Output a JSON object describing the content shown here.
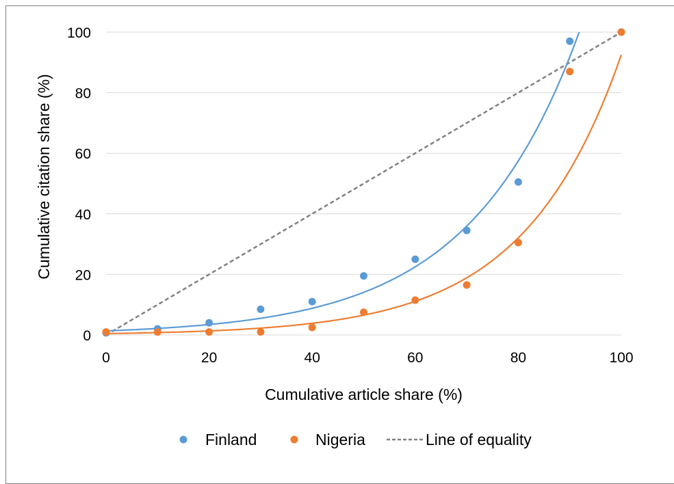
{
  "chart_data": {
    "type": "scatter",
    "title": "",
    "xlabel": "Cumulative article share (%)",
    "ylabel": "Cumulative citation share (%)",
    "xlim": [
      0,
      100
    ],
    "ylim": [
      0,
      100
    ],
    "xticks": [
      "0",
      "20",
      "40",
      "60",
      "80",
      "100"
    ],
    "yticks": [
      "0",
      "20",
      "40",
      "60",
      "80",
      "100"
    ],
    "grid": "horizontal",
    "legend_position": "bottom",
    "series": [
      {
        "name": "Finland",
        "color": "#5b9bd5",
        "trendline": "exponential",
        "x": [
          0,
          10,
          20,
          30,
          40,
          50,
          60,
          70,
          80,
          90,
          100
        ],
        "y": [
          0.7,
          2,
          4,
          8.5,
          11,
          19.5,
          25,
          34.5,
          50.5,
          97,
          100
        ]
      },
      {
        "name": "Nigeria",
        "color": "#ed7d31",
        "trendline": "exponential",
        "x": [
          0,
          10,
          20,
          30,
          40,
          50,
          60,
          70,
          80,
          90,
          100
        ],
        "y": [
          1,
          1,
          1,
          1,
          2.5,
          7.5,
          11.5,
          16.5,
          30.5,
          87,
          100
        ]
      },
      {
        "name": "Line of equality",
        "color": "#808080",
        "style": "dashed",
        "x": [
          0,
          100
        ],
        "y": [
          0,
          100
        ]
      }
    ]
  }
}
